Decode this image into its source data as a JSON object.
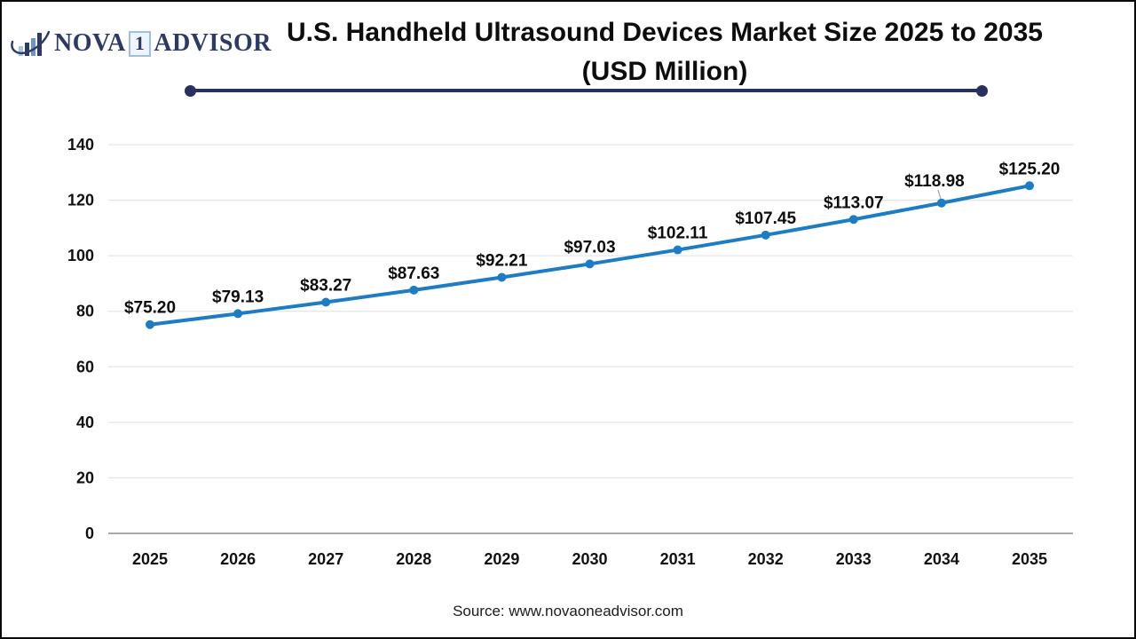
{
  "logo": {
    "icon": "bar-chart-swoosh-icon",
    "name_part1": "NOVA",
    "name_badge": "1",
    "name_part2": "ADVISOR"
  },
  "title": {
    "line1": "U.S. Handheld Ultrasound Devices Market Size 2025 to 2035",
    "line2": "(USD Million)"
  },
  "source": "Source: www.novaoneadvisor.com",
  "chart_data": {
    "type": "line",
    "title": "U.S. Handheld Ultrasound Devices Market Size 2025 to 2035 (USD Million)",
    "categories": [
      "2025",
      "2026",
      "2027",
      "2028",
      "2029",
      "2030",
      "2031",
      "2032",
      "2033",
      "2034",
      "2035"
    ],
    "values": [
      75.2,
      79.13,
      83.27,
      87.63,
      92.21,
      97.03,
      102.11,
      107.45,
      113.07,
      118.98,
      125.2
    ],
    "labels": [
      "$75.20",
      "$79.13",
      "$83.27",
      "$87.63",
      "$92.21",
      "$97.03",
      "$102.11",
      "$107.45",
      "$113.07",
      "$118.98",
      "$125.20"
    ],
    "xlabel": "",
    "ylabel": "",
    "ylim": [
      0,
      140
    ],
    "yticks": [
      0,
      20,
      40,
      60,
      80,
      100,
      120,
      140
    ],
    "grid": true,
    "legend": "none",
    "line_color": "#1d7dc4",
    "marker": "circle",
    "label_adjust": {
      "9": {
        "dx": -8,
        "dy": -6,
        "leader": true
      }
    }
  }
}
